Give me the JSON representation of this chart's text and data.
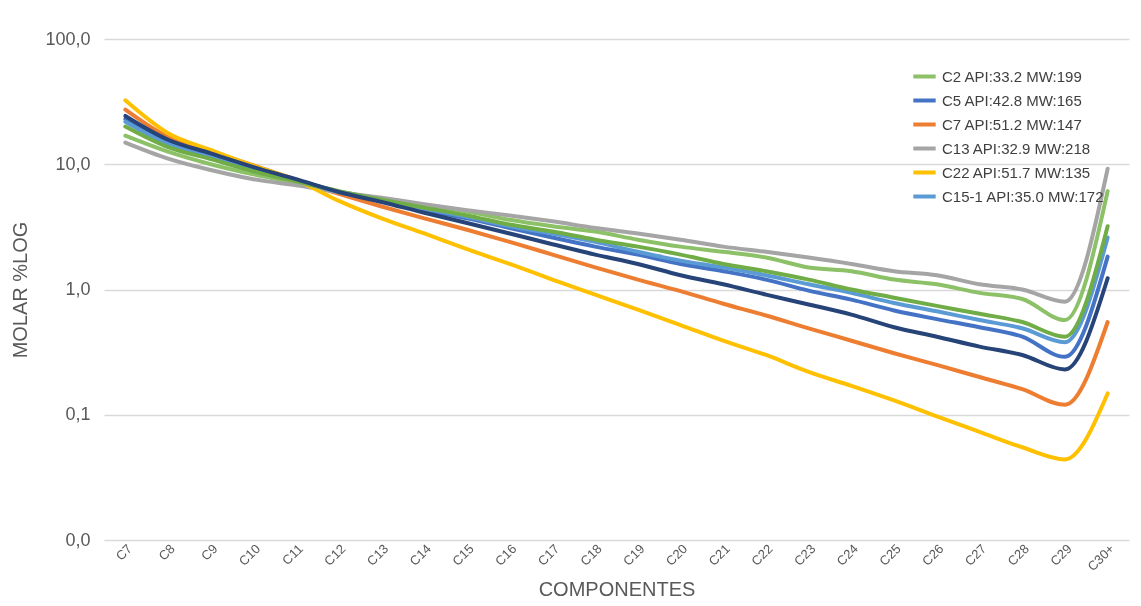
{
  "chart_data": {
    "type": "line",
    "xlabel": "COMPONENTES",
    "ylabel": "MOLAR %LOG",
    "categories": [
      "C7",
      "C8",
      "C9",
      "C10",
      "C11",
      "C12",
      "C13",
      "C14",
      "C15",
      "C16",
      "C17",
      "C18",
      "C19",
      "C20",
      "C21",
      "C22",
      "C23",
      "C24",
      "C25",
      "C26",
      "C27",
      "C28",
      "C29",
      "C30+"
    ],
    "series": [
      {
        "name": "C2 API:33.2 MW:199",
        "color": "#8cc168",
        "values": [
          16.9,
          12.6,
          10.0,
          8.3,
          7.1,
          6.0,
          5.3,
          4.7,
          4.2,
          3.6,
          3.2,
          2.9,
          2.5,
          2.2,
          2.0,
          1.8,
          1.5,
          1.4,
          1.2,
          1.1,
          0.94,
          0.84,
          0.57,
          6.1
        ]
      },
      {
        "name": "C5 API:42.8 MW:165",
        "color": "#4472c4",
        "values": [
          23,
          15,
          12,
          9.4,
          7.5,
          6.0,
          5.1,
          4.3,
          3.7,
          3.1,
          2.6,
          2.2,
          1.9,
          1.6,
          1.4,
          1.2,
          0.98,
          0.83,
          0.68,
          0.58,
          0.5,
          0.42,
          0.29,
          1.83
        ]
      },
      {
        "name": "C7 API:51.2 MW:147",
        "color": "#ed7d31",
        "values": [
          27.3,
          16.5,
          12.7,
          9.8,
          7.5,
          5.8,
          4.6,
          3.7,
          3.0,
          2.4,
          1.9,
          1.5,
          1.2,
          0.97,
          0.77,
          0.62,
          0.49,
          0.39,
          0.31,
          0.25,
          0.2,
          0.16,
          0.12,
          0.55
        ]
      },
      {
        "name": "C13 API:32.9 MW:218",
        "color": "#a5a5a5",
        "values": [
          14.9,
          11.1,
          9.0,
          7.6,
          6.8,
          6.0,
          5.4,
          4.8,
          4.3,
          3.9,
          3.5,
          3.1,
          2.8,
          2.5,
          2.2,
          2.0,
          1.8,
          1.6,
          1.4,
          1.3,
          1.1,
          1.0,
          0.8,
          9.2
        ]
      },
      {
        "name": "C22 API:51.7 MW:135",
        "color": "#ffc000",
        "values": [
          32.4,
          17.7,
          13,
          9.7,
          7.5,
          5.1,
          3.7,
          2.8,
          2.1,
          1.6,
          1.2,
          0.91,
          0.69,
          0.52,
          0.39,
          0.3,
          0.22,
          0.17,
          0.13,
          0.097,
          0.073,
          0.055,
          0.044,
          0.148
        ]
      },
      {
        "name": "C15-1 API:35.0 MW:172",
        "color": "#5b9bd5",
        "values": [
          21.8,
          14.5,
          11.5,
          9.2,
          7.4,
          6.0,
          5.1,
          4.4,
          3.8,
          3.2,
          2.8,
          2.4,
          2.0,
          1.7,
          1.5,
          1.3,
          1.1,
          0.94,
          0.78,
          0.67,
          0.57,
          0.49,
          0.38,
          2.6
        ]
      },
      {
        "color": "#70ad47",
        "values": [
          20,
          13.7,
          11,
          8.8,
          7.3,
          6.1,
          5.2,
          4.5,
          3.9,
          3.3,
          2.9,
          2.5,
          2.2,
          1.9,
          1.6,
          1.4,
          1.2,
          1.0,
          0.86,
          0.74,
          0.64,
          0.55,
          0.42,
          3.2
        ]
      },
      {
        "color": "#264478",
        "values": [
          24.3,
          15.7,
          12.2,
          9.5,
          7.6,
          6.0,
          5.0,
          4.1,
          3.4,
          2.8,
          2.3,
          1.9,
          1.6,
          1.3,
          1.1,
          0.91,
          0.76,
          0.63,
          0.5,
          0.42,
          0.35,
          0.3,
          0.23,
          1.23
        ]
      }
    ],
    "log": true,
    "ylim": [
      0.01,
      100
    ],
    "yticks": [
      {
        "value": 0.01,
        "label": "0,0"
      },
      {
        "value": 0.1,
        "label": "0,1"
      },
      {
        "value": 1,
        "label": "1,0"
      },
      {
        "value": 10,
        "label": "10,0"
      },
      {
        "value": 100,
        "label": "100,0"
      }
    ],
    "grid": "y",
    "legend": "top right",
    "marker": "none",
    "line_style": "solid"
  }
}
